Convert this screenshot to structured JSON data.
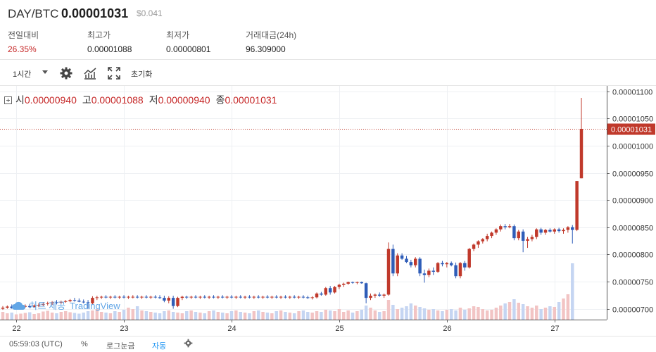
{
  "header": {
    "pair": "DAY/BTC",
    "price": "0.00001031",
    "usd_price": "$0.041",
    "stats": [
      {
        "label": "전일대비",
        "value": "26.35%",
        "up": true
      },
      {
        "label": "최고가",
        "value": "0.00001088",
        "up": false
      },
      {
        "label": "최저가",
        "value": "0.00000801",
        "up": false
      },
      {
        "label": "거래대금(24h)",
        "value": "96.309000",
        "up": false
      }
    ]
  },
  "toolbar": {
    "interval": "1시간",
    "icons": [
      "gear-icon",
      "indicators-icon",
      "fullscreen-icon"
    ],
    "reset_label": "초기화"
  },
  "legend": {
    "open_label": "시",
    "open": "0.00000940",
    "high_label": "고",
    "high": "0.00001088",
    "low_label": "저",
    "low": "0.00000940",
    "close_label": "종",
    "close": "0.00001031"
  },
  "watermark": {
    "text": "차트 제공",
    "brand": "TradingView"
  },
  "footer": {
    "time": "05:59:03 (UTC)",
    "percent": "%",
    "log": "로그눈금",
    "auto": "자동"
  },
  "colors": {
    "up": "#c0392b",
    "down": "#2f5db8",
    "up_vol": "#f2c4c4",
    "down_vol": "#c5d5f2",
    "grid": "#eef0f3"
  },
  "chart_data": {
    "type": "candlestick",
    "x_tick_labels": [
      "22",
      "23",
      "24",
      "25",
      "26",
      "27"
    ],
    "y_tick_labels": [
      "0.00001100",
      "0.00001050",
      "0.00001000",
      "0.00000950",
      "0.00000900",
      "0.00000850",
      "0.00000800",
      "0.00000750",
      "0.00000700"
    ],
    "ylim": [
      6.8e-06,
      1.11e-05
    ],
    "last_price": 1.031e-05,
    "last_price_label": "0.00001031",
    "candles": [
      [
        7e-06,
        7.05e-06,
        6.98e-06,
        7.02e-06
      ],
      [
        7.02e-06,
        7.06e-06,
        7e-06,
        7.04e-06
      ],
      [
        7.04e-06,
        7.08e-06,
        7e-06,
        7.01e-06
      ],
      [
        7.01e-06,
        7.05e-06,
        6.99e-06,
        7.03e-06
      ],
      [
        7.03e-06,
        7.07e-06,
        7.01e-06,
        7.04e-06
      ],
      [
        7.04e-06,
        7.08e-06,
        7.02e-06,
        7.05e-06
      ],
      [
        7.05e-06,
        7.09e-06,
        7.01e-06,
        7.03e-06
      ],
      [
        7.03e-06,
        7.08e-06,
        7.02e-06,
        7.06e-06
      ],
      [
        7.06e-06,
        7.1e-06,
        7.03e-06,
        7.07e-06
      ],
      [
        7.07e-06,
        7.12e-06,
        7.05e-06,
        7.09e-06
      ],
      [
        7.09e-06,
        7.13e-06,
        7.06e-06,
        7.1e-06
      ],
      [
        7.1e-06,
        7.14e-06,
        7.07e-06,
        7.12e-06
      ],
      [
        7.12e-06,
        7.16e-06,
        7.08e-06,
        7.11e-06
      ],
      [
        7.11e-06,
        7.15e-06,
        7.09e-06,
        7.13e-06
      ],
      [
        7.13e-06,
        7.16e-06,
        7.11e-06,
        7.14e-06
      ],
      [
        7.14e-06,
        7.18e-06,
        7.12e-06,
        7.16e-06
      ],
      [
        7.16e-06,
        7.2e-06,
        7.13e-06,
        7.15e-06
      ],
      [
        7.15e-06,
        7.19e-06,
        7.12e-06,
        7.13e-06
      ],
      [
        7.13e-06,
        7.17e-06,
        7.1e-06,
        7.12e-06
      ],
      [
        7.12e-06,
        7.16e-06,
        7e-06,
        7.1e-06
      ],
      [
        7.1e-06,
        7.23e-06,
        7.08e-06,
        7.2e-06
      ],
      [
        7.2e-06,
        7.24e-06,
        7.16e-06,
        7.21e-06
      ],
      [
        7.21e-06,
        7.24e-06,
        7.18e-06,
        7.22e-06
      ],
      [
        7.22e-06,
        7.25e-06,
        7.19e-06,
        7.21e-06
      ],
      [
        7.21e-06,
        7.24e-06,
        7.18e-06,
        7.22e-06
      ],
      [
        7.22e-06,
        7.25e-06,
        7.19e-06,
        7.21e-06
      ],
      [
        7.21e-06,
        7.24e-06,
        7.18e-06,
        7.22e-06
      ],
      [
        7.22e-06,
        7.25e-06,
        7.19e-06,
        7.21e-06
      ],
      [
        7.21e-06,
        7.24e-06,
        7.18e-06,
        7.22e-06
      ],
      [
        7.22e-06,
        7.25e-06,
        7.19e-06,
        7.22e-06
      ],
      [
        7.22e-06,
        7.25e-06,
        7.19e-06,
        7.21e-06
      ],
      [
        7.21e-06,
        7.24e-06,
        7.18e-06,
        7.22e-06
      ],
      [
        7.22e-06,
        7.25e-06,
        7.19e-06,
        7.21e-06
      ],
      [
        7.21e-06,
        7.24e-06,
        7.18e-06,
        7.22e-06
      ],
      [
        7.22e-06,
        7.25e-06,
        7.19e-06,
        7.21e-06
      ],
      [
        7.21e-06,
        7.25e-06,
        7.18e-06,
        7.2e-06
      ],
      [
        7.2e-06,
        7.24e-06,
        7.12e-06,
        7.15e-06
      ],
      [
        7.15e-06,
        7.23e-06,
        7.1e-06,
        7.2e-06
      ],
      [
        7.2e-06,
        7.24e-06,
        7e-06,
        7.05e-06
      ],
      [
        7.05e-06,
        7.22e-06,
        7.03e-06,
        7.2e-06
      ],
      [
        7.2e-06,
        7.24e-06,
        7.16e-06,
        7.22e-06
      ],
      [
        7.22e-06,
        7.24e-06,
        7.18e-06,
        7.21e-06
      ],
      [
        7.21e-06,
        7.24e-06,
        7.18e-06,
        7.22e-06
      ],
      [
        7.22e-06,
        7.25e-06,
        7.19e-06,
        7.21e-06
      ],
      [
        7.21e-06,
        7.24e-06,
        7.18e-06,
        7.22e-06
      ],
      [
        7.22e-06,
        7.25e-06,
        7.19e-06,
        7.21e-06
      ],
      [
        7.21e-06,
        7.24e-06,
        7.18e-06,
        7.22e-06
      ],
      [
        7.22e-06,
        7.25e-06,
        7.19e-06,
        7.21e-06
      ],
      [
        7.21e-06,
        7.24e-06,
        7.18e-06,
        7.22e-06
      ],
      [
        7.22e-06,
        7.25e-06,
        7.19e-06,
        7.21e-06
      ],
      [
        7.21e-06,
        7.24e-06,
        7.18e-06,
        7.22e-06
      ],
      [
        7.22e-06,
        7.25e-06,
        7.19e-06,
        7.21e-06
      ],
      [
        7.21e-06,
        7.24e-06,
        7.18e-06,
        7.22e-06
      ],
      [
        7.22e-06,
        7.25e-06,
        7.19e-06,
        7.21e-06
      ],
      [
        7.21e-06,
        7.24e-06,
        7.18e-06,
        7.22e-06
      ],
      [
        7.22e-06,
        7.25e-06,
        7.19e-06,
        7.21e-06
      ],
      [
        7.21e-06,
        7.24e-06,
        7.18e-06,
        7.22e-06
      ],
      [
        7.22e-06,
        7.25e-06,
        7.19e-06,
        7.21e-06
      ],
      [
        7.21e-06,
        7.24e-06,
        7.18e-06,
        7.22e-06
      ],
      [
        7.22e-06,
        7.25e-06,
        7.19e-06,
        7.21e-06
      ],
      [
        7.21e-06,
        7.24e-06,
        7.18e-06,
        7.22e-06
      ],
      [
        7.22e-06,
        7.25e-06,
        7.19e-06,
        7.21e-06
      ],
      [
        7.21e-06,
        7.24e-06,
        7.18e-06,
        7.22e-06
      ],
      [
        7.22e-06,
        7.25e-06,
        7.19e-06,
        7.21e-06
      ],
      [
        7.21e-06,
        7.24e-06,
        7.18e-06,
        7.22e-06
      ],
      [
        7.22e-06,
        7.25e-06,
        7.19e-06,
        7.21e-06
      ],
      [
        7.21e-06,
        7.24e-06,
        7.18e-06,
        7.22e-06
      ],
      [
        7.22e-06,
        7.25e-06,
        7.19e-06,
        7.21e-06
      ],
      [
        7.21e-06,
        7.24e-06,
        7.18e-06,
        7.2e-06
      ],
      [
        7.2e-06,
        7.23e-06,
        7.17e-06,
        7.21e-06
      ],
      [
        7.21e-06,
        7.3e-06,
        7.19e-06,
        7.28e-06
      ],
      [
        7.28e-06,
        7.31e-06,
        7.24e-06,
        7.26e-06
      ],
      [
        7.26e-06,
        7.4e-06,
        7.24e-06,
        7.38e-06
      ],
      [
        7.38e-06,
        7.42e-06,
        7.26e-06,
        7.3e-06
      ],
      [
        7.3e-06,
        7.42e-06,
        7.28e-06,
        7.4e-06
      ],
      [
        7.4e-06,
        7.46e-06,
        7.36e-06,
        7.44e-06
      ],
      [
        7.44e-06,
        7.48e-06,
        7.4e-06,
        7.46e-06
      ],
      [
        7.46e-06,
        7.5e-06,
        7.44e-06,
        7.49e-06
      ],
      [
        7.49e-06,
        7.5e-06,
        7.46e-06,
        7.48e-06
      ],
      [
        7.48e-06,
        7.5e-06,
        7.45e-06,
        7.49e-06
      ],
      [
        7.49e-06,
        7.5e-06,
        7.46e-06,
        7.47e-06
      ],
      [
        7.47e-06,
        7.48e-06,
        7.1e-06,
        7.2e-06
      ],
      [
        7.2e-06,
        7.28e-06,
        7.16e-06,
        7.24e-06
      ],
      [
        7.24e-06,
        7.28e-06,
        7.2e-06,
        7.26e-06
      ],
      [
        7.26e-06,
        7.3e-06,
        7.22e-06,
        7.24e-06
      ],
      [
        7.24e-06,
        7.28e-06,
        7.2e-06,
        7.26e-06
      ],
      [
        7.26e-06,
        8.22e-06,
        7.24e-06,
        8.1e-06
      ],
      [
        8.1e-06,
        8.18e-06,
        7.6e-06,
        7.65e-06
      ],
      [
        7.65e-06,
        8.02e-06,
        7.6e-06,
        7.98e-06
      ],
      [
        7.98e-06,
        8.02e-06,
        7.9e-06,
        7.92e-06
      ],
      [
        7.92e-06,
        7.97e-06,
        7.84e-06,
        7.86e-06
      ],
      [
        7.86e-06,
        7.9e-06,
        7.76e-06,
        7.8e-06
      ],
      [
        7.8e-06,
        7.95e-06,
        7.76e-06,
        7.92e-06
      ],
      [
        7.92e-06,
        7.95e-06,
        7.6e-06,
        7.65e-06
      ],
      [
        7.65e-06,
        7.72e-06,
        7.48e-06,
        7.62e-06
      ],
      [
        7.62e-06,
        7.74e-06,
        7.58e-06,
        7.7e-06
      ],
      [
        7.7e-06,
        7.76e-06,
        7.62e-06,
        7.68e-06
      ],
      [
        7.68e-06,
        7.86e-06,
        7.66e-06,
        7.84e-06
      ],
      [
        7.84e-06,
        7.88e-06,
        7.78e-06,
        7.82e-06
      ],
      [
        7.82e-06,
        7.86e-06,
        7.76e-06,
        7.84e-06
      ],
      [
        7.84e-06,
        7.87e-06,
        7.78e-06,
        7.8e-06
      ],
      [
        7.8e-06,
        7.85e-06,
        7.56e-06,
        7.6e-06
      ],
      [
        7.6e-06,
        7.86e-06,
        7.56e-06,
        7.84e-06
      ],
      [
        7.84e-06,
        7.88e-06,
        7.7e-06,
        7.76e-06
      ],
      [
        7.76e-06,
        8.12e-06,
        7.74e-06,
        8.1e-06
      ],
      [
        8.1e-06,
        8.2e-06,
        8.06e-06,
        8.18e-06
      ],
      [
        8.18e-06,
        8.26e-06,
        8.12e-06,
        8.24e-06
      ],
      [
        8.24e-06,
        8.3e-06,
        8.2e-06,
        8.28e-06
      ],
      [
        8.28e-06,
        8.38e-06,
        8.24e-06,
        8.34e-06
      ],
      [
        8.34e-06,
        8.42e-06,
        8.3e-06,
        8.4e-06
      ],
      [
        8.4e-06,
        8.48e-06,
        8.36e-06,
        8.46e-06
      ],
      [
        8.46e-06,
        8.55e-06,
        8.42e-06,
        8.52e-06
      ],
      [
        8.52e-06,
        8.56e-06,
        8.46e-06,
        8.5e-06
      ],
      [
        8.5e-06,
        8.56e-06,
        8.48e-06,
        8.52e-06
      ],
      [
        8.52e-06,
        8.55e-06,
        8.26e-06,
        8.3e-06
      ],
      [
        8.3e-06,
        8.45e-06,
        8.26e-06,
        8.42e-06
      ],
      [
        8.42e-06,
        8.46e-06,
        8.04e-06,
        8.25e-06
      ],
      [
        8.25e-06,
        8.32e-06,
        8.12e-06,
        8.28e-06
      ],
      [
        8.28e-06,
        8.36e-06,
        8.24e-06,
        8.32e-06
      ],
      [
        8.32e-06,
        8.48e-06,
        8.28e-06,
        8.46e-06
      ],
      [
        8.46e-06,
        8.49e-06,
        8.36e-06,
        8.4e-06
      ],
      [
        8.4e-06,
        8.47e-06,
        8.36e-06,
        8.45e-06
      ],
      [
        8.45e-06,
        8.48e-06,
        8.4e-06,
        8.42e-06
      ],
      [
        8.42e-06,
        8.48e-06,
        8.38e-06,
        8.46e-06
      ],
      [
        8.46e-06,
        8.49e-06,
        8.4e-06,
        8.43e-06
      ],
      [
        8.43e-06,
        8.48e-06,
        8.38e-06,
        8.45e-06
      ],
      [
        8.45e-06,
        8.52e-06,
        8.4e-06,
        8.5e-06
      ],
      [
        8.5e-06,
        8.54e-06,
        8.2e-06,
        8.45e-06
      ],
      [
        8.45e-06,
        9.35e-06,
        8.43e-06,
        9.35e-06
      ],
      [
        9.4e-06,
        1.088e-05,
        9.4e-06,
        1.031e-05
      ]
    ],
    "volumes": [
      22,
      18,
      20,
      15,
      17,
      19,
      21,
      16,
      18,
      23,
      25,
      20,
      18,
      22,
      24,
      21,
      19,
      17,
      20,
      24,
      26,
      30,
      22,
      20,
      18,
      24,
      22,
      28,
      34,
      30,
      38,
      26,
      24,
      22,
      20,
      18,
      24,
      26,
      22,
      20,
      18,
      24,
      26,
      22,
      20,
      18,
      24,
      26,
      22,
      20,
      18,
      24,
      26,
      22,
      20,
      18,
      24,
      26,
      22,
      20,
      18,
      24,
      26,
      22,
      20,
      18,
      24,
      26,
      22,
      20,
      24,
      22,
      28,
      26,
      24,
      30,
      22,
      26,
      20,
      24,
      28,
      40,
      34,
      26,
      22,
      24,
      56,
      42,
      30,
      34,
      38,
      46,
      40,
      36,
      32,
      28,
      30,
      26,
      24,
      28,
      30,
      26,
      34,
      28,
      32,
      38,
      36,
      30,
      26,
      28,
      34,
      40,
      46,
      50,
      58,
      48,
      44,
      38,
      34,
      40,
      30,
      34,
      38,
      36,
      50,
      60,
      72,
      160
    ]
  }
}
